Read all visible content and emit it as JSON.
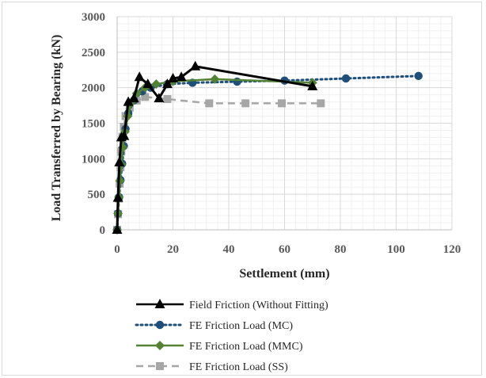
{
  "chart_data": {
    "type": "line",
    "title": "",
    "xlabel": "Settlement (mm)",
    "ylabel": "Load Transferred  by Bearing (kN)",
    "xlim": [
      0,
      120
    ],
    "ylim": [
      0,
      3000
    ],
    "xticks": [
      0,
      20,
      40,
      60,
      80,
      100,
      120
    ],
    "yticks": [
      0,
      500,
      1000,
      1500,
      2000,
      2500,
      3000
    ],
    "grid": true,
    "legend_position": "bottom",
    "series": [
      {
        "name": "Field Friction (Without Fitting)",
        "color": "#000000",
        "marker": "triangle",
        "line_style": "solid",
        "points": [
          [
            0,
            0
          ],
          [
            0.3,
            450
          ],
          [
            0.8,
            950
          ],
          [
            1.5,
            1300
          ],
          [
            2.5,
            1320
          ],
          [
            4,
            1800
          ],
          [
            6,
            1850
          ],
          [
            8,
            2150
          ],
          [
            11,
            2050
          ],
          [
            15,
            1850
          ],
          [
            18,
            2050
          ],
          [
            20,
            2130
          ],
          [
            23,
            2150
          ],
          [
            28,
            2300
          ],
          [
            70,
            2020
          ]
        ]
      },
      {
        "name": "FE Friction Load (MC)",
        "color": "#1f4e79",
        "marker": "circle",
        "line_style": "dotted",
        "points": [
          [
            0,
            0
          ],
          [
            0.3,
            230
          ],
          [
            0.7,
            460
          ],
          [
            1.2,
            700
          ],
          [
            1.8,
            930
          ],
          [
            2.4,
            1180
          ],
          [
            3,
            1420
          ],
          [
            4,
            1640
          ],
          [
            6,
            1820
          ],
          [
            9,
            1950
          ],
          [
            12,
            2000
          ],
          [
            18,
            2050
          ],
          [
            27,
            2070
          ],
          [
            43,
            2085
          ],
          [
            60,
            2100
          ],
          [
            82,
            2130
          ],
          [
            108,
            2165
          ]
        ]
      },
      {
        "name": "FE Friction Load (MMC)",
        "color": "#548235",
        "marker": "diamond",
        "line_style": "solid",
        "points": [
          [
            0,
            0
          ],
          [
            0.3,
            230
          ],
          [
            0.6,
            460
          ],
          [
            1,
            690
          ],
          [
            1.5,
            920
          ],
          [
            2,
            1160
          ],
          [
            2.8,
            1380
          ],
          [
            3.8,
            1600
          ],
          [
            5,
            1790
          ],
          [
            7,
            1920
          ],
          [
            10,
            2000
          ],
          [
            14,
            2050
          ],
          [
            20,
            2090
          ],
          [
            35,
            2120
          ],
          [
            70,
            2070
          ]
        ]
      },
      {
        "name": "FE Friction Load (SS)",
        "color": "#a6a6a6",
        "marker": "square",
        "line_style": "dashed",
        "points": [
          [
            0,
            0
          ],
          [
            0.3,
            220
          ],
          [
            0.6,
            440
          ],
          [
            0.9,
            650
          ],
          [
            1.2,
            880
          ],
          [
            1.5,
            1100
          ],
          [
            1.9,
            1310
          ],
          [
            2.4,
            1450
          ],
          [
            3,
            1600
          ],
          [
            4.5,
            1720
          ],
          [
            7,
            1820
          ],
          [
            10,
            1870
          ],
          [
            18,
            1840
          ],
          [
            33,
            1780
          ],
          [
            46,
            1780
          ],
          [
            59,
            1780
          ],
          [
            73,
            1780
          ]
        ]
      }
    ]
  }
}
